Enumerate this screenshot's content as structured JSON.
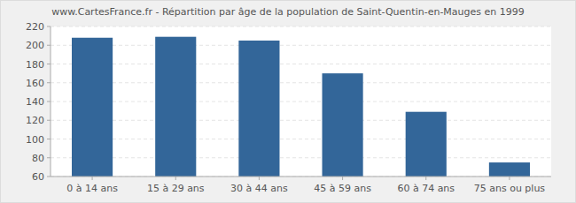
{
  "chart_data": {
    "type": "bar",
    "title": "www.CartesFrance.fr - Répartition par âge de la population de Saint-Quentin-en-Mauges en 1999",
    "categories": [
      "0 à 14 ans",
      "15 à 29 ans",
      "30 à 44 ans",
      "45 à 59 ans",
      "60 à 74 ans",
      "75 ans ou plus"
    ],
    "values": [
      208,
      209,
      205,
      170,
      129,
      75
    ],
    "color": "#336699",
    "ylim": [
      60,
      220
    ],
    "yticks": [
      60,
      80,
      100,
      120,
      140,
      160,
      180,
      200,
      220
    ],
    "grid": true
  }
}
